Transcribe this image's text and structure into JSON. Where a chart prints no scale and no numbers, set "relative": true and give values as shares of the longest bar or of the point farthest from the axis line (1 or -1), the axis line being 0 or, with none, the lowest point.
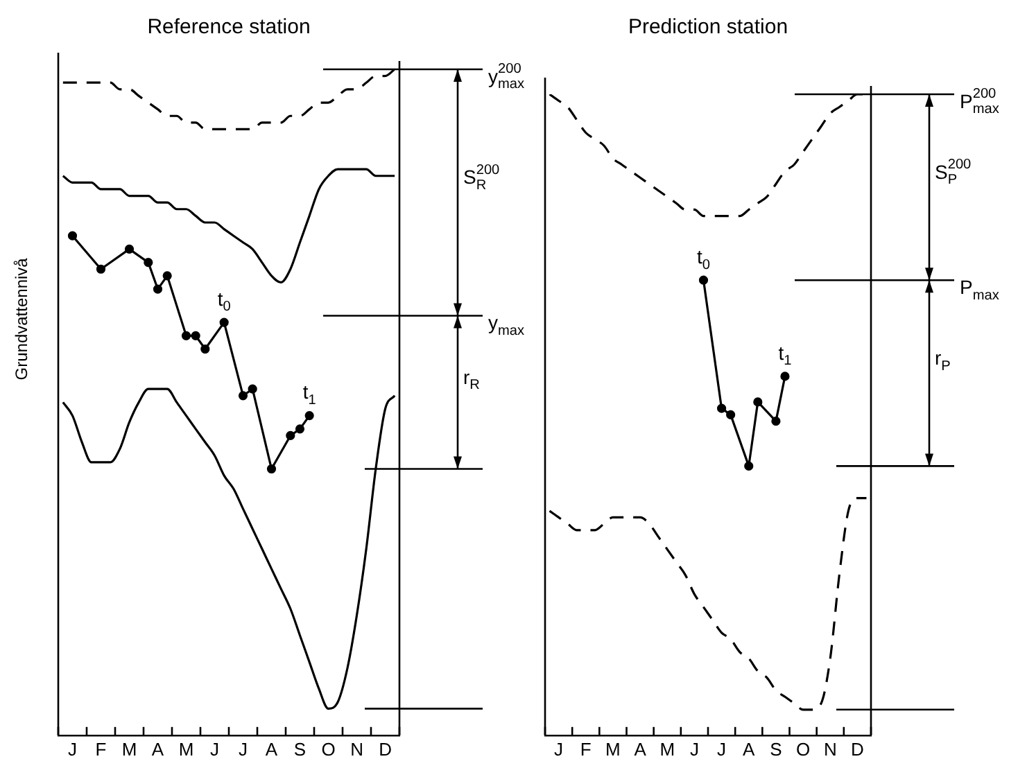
{
  "chart_data": [
    {
      "type": "line",
      "title": "Reference station",
      "ylabel": "Grundvattennivå",
      "relative": true,
      "categories": [
        null,
        "J",
        null,
        null,
        "F",
        null,
        null,
        "M",
        null,
        null,
        "A",
        null,
        null,
        "M",
        null,
        null,
        "J",
        null,
        null,
        "J",
        null,
        null,
        "A",
        null,
        null,
        "S",
        null,
        null,
        "O",
        null,
        null,
        "N",
        null,
        null,
        "D",
        null
      ],
      "series": [
        {
          "color": "#000000",
          "line_style": "dashed",
          "marker": "none",
          "values": [
            0.98,
            0.98,
            0.98,
            0.98,
            0.98,
            0.98,
            0.97,
            0.97,
            0.96,
            0.95,
            0.94,
            0.93,
            0.93,
            0.92,
            0.92,
            0.91,
            0.91,
            0.91,
            0.91,
            0.91,
            0.91,
            0.92,
            0.92,
            0.92,
            0.93,
            0.93,
            0.94,
            0.95,
            0.95,
            0.96,
            0.97,
            0.97,
            0.98,
            0.99,
            0.99,
            1
          ]
        },
        {
          "color": "#000000",
          "line_style": "solid",
          "marker": "none",
          "values": [
            0.84,
            0.83,
            0.83,
            0.83,
            0.82,
            0.82,
            0.82,
            0.81,
            0.81,
            0.81,
            0.8,
            0.8,
            0.79,
            0.79,
            0.78,
            0.77,
            0.77,
            0.76,
            0.75,
            0.74,
            0.73,
            0.71,
            0.69,
            0.68,
            0.7,
            0.74,
            0.78,
            0.82,
            0.84,
            0.85,
            0.85,
            0.85,
            0.85,
            0.84,
            0.84,
            0.84
          ]
        },
        {
          "color": "#000000",
          "line_style": "solid",
          "marker": "circle",
          "values": [
            null,
            0.75,
            null,
            null,
            0.7,
            null,
            null,
            0.73,
            null,
            0.71,
            0.67,
            0.69,
            null,
            0.6,
            0.6,
            0.58,
            null,
            0.62,
            null,
            0.51,
            0.52,
            null,
            0.4,
            null,
            0.45,
            0.46,
            0.48,
            null,
            null,
            null,
            null,
            null,
            null,
            null,
            null,
            null
          ]
        },
        {
          "color": "#000000",
          "line_style": "solid",
          "marker": "none",
          "values": [
            0.5,
            0.48,
            0.44,
            0.41,
            0.41,
            0.41,
            0.43,
            0.47,
            0.5,
            0.52,
            0.52,
            0.52,
            0.5,
            0.48,
            0.46,
            0.44,
            0.42,
            0.39,
            0.37,
            0.34,
            0.31,
            0.28,
            0.25,
            0.22,
            0.19,
            0.15,
            0.11,
            0.07,
            0.04,
            0.05,
            0.1,
            0.18,
            0.28,
            0.4,
            0.49,
            0.51
          ]
        }
      ],
      "ref_lines": [
        {
          "axis": "y",
          "value": 1,
          "label": "y$^{200}$$_{max}$"
        },
        {
          "axis": "y",
          "value": 0.63,
          "label": "y$_{max}$"
        },
        {
          "axis": "y",
          "value": 0.4,
          "label": null
        },
        {
          "axis": "y",
          "value": 0.04,
          "label": null
        }
      ],
      "annotations": [
        "S$_{R}$$^{200}$",
        "r$_{R}$",
        {
          "text": "t$_{0}$",
          "y": 0.62
        },
        {
          "text": "t$_{1}$",
          "y": 0.48
        }
      ]
    },
    {
      "type": "line",
      "title": "Prediction station",
      "relative": true,
      "categories": [
        null,
        "J",
        null,
        null,
        "F",
        null,
        null,
        "M",
        null,
        null,
        "A",
        null,
        null,
        "M",
        null,
        null,
        "J",
        null,
        null,
        "J",
        null,
        null,
        "A",
        null,
        null,
        "S",
        null,
        null,
        "O",
        null,
        null,
        "N",
        null,
        null,
        "D",
        null
      ],
      "series": [
        {
          "color": "#000000",
          "line_style": "dashed",
          "marker": "none",
          "values": [
            1,
            0.99,
            0.98,
            0.96,
            0.94,
            0.93,
            0.92,
            0.9,
            0.89,
            0.88,
            0.87,
            0.86,
            0.85,
            0.84,
            0.83,
            0.82,
            0.82,
            0.81,
            0.81,
            0.81,
            0.81,
            0.81,
            0.82,
            0.83,
            0.84,
            0.86,
            0.88,
            0.89,
            0.91,
            0.93,
            0.95,
            0.97,
            0.98,
            0.99,
            1,
            1
          ]
        },
        {
          "color": "#000000",
          "line_style": "solid",
          "marker": "circle",
          "values": [
            null,
            null,
            null,
            null,
            null,
            null,
            null,
            null,
            null,
            null,
            null,
            null,
            null,
            null,
            null,
            null,
            null,
            0.71,
            null,
            0.51,
            0.5,
            null,
            0.42,
            0.52,
            null,
            0.49,
            0.56,
            null,
            null,
            null,
            null,
            null,
            null,
            null,
            null,
            null
          ]
        },
        {
          "color": "#000000",
          "line_style": "dashed",
          "marker": "none",
          "values": [
            0.35,
            0.34,
            0.33,
            0.32,
            0.32,
            0.32,
            0.33,
            0.34,
            0.34,
            0.34,
            0.34,
            0.33,
            0.31,
            0.29,
            0.27,
            0.25,
            0.22,
            0.2,
            0.18,
            0.16,
            0.15,
            0.13,
            0.12,
            0.1,
            0.09,
            0.07,
            0.06,
            0.05,
            0.04,
            0.04,
            0.05,
            0.12,
            0.25,
            0.35,
            0.37,
            0.37
          ]
        }
      ],
      "ref_lines": [
        {
          "axis": "y",
          "value": 1,
          "label": "P$^{200}$$_{max}$"
        },
        {
          "axis": "y",
          "value": 0.71,
          "label": "P$_{max}$"
        },
        {
          "axis": "y",
          "value": 0.42,
          "label": null
        },
        {
          "axis": "y",
          "value": 0.04,
          "label": null
        }
      ],
      "annotations": [
        "S$_{P}$$^{200}$",
        "r$_{P}$",
        {
          "text": "t$_{0}$",
          "y": 0.71
        },
        {
          "text": "t$_{1}$",
          "y": 0.56
        }
      ]
    }
  ]
}
